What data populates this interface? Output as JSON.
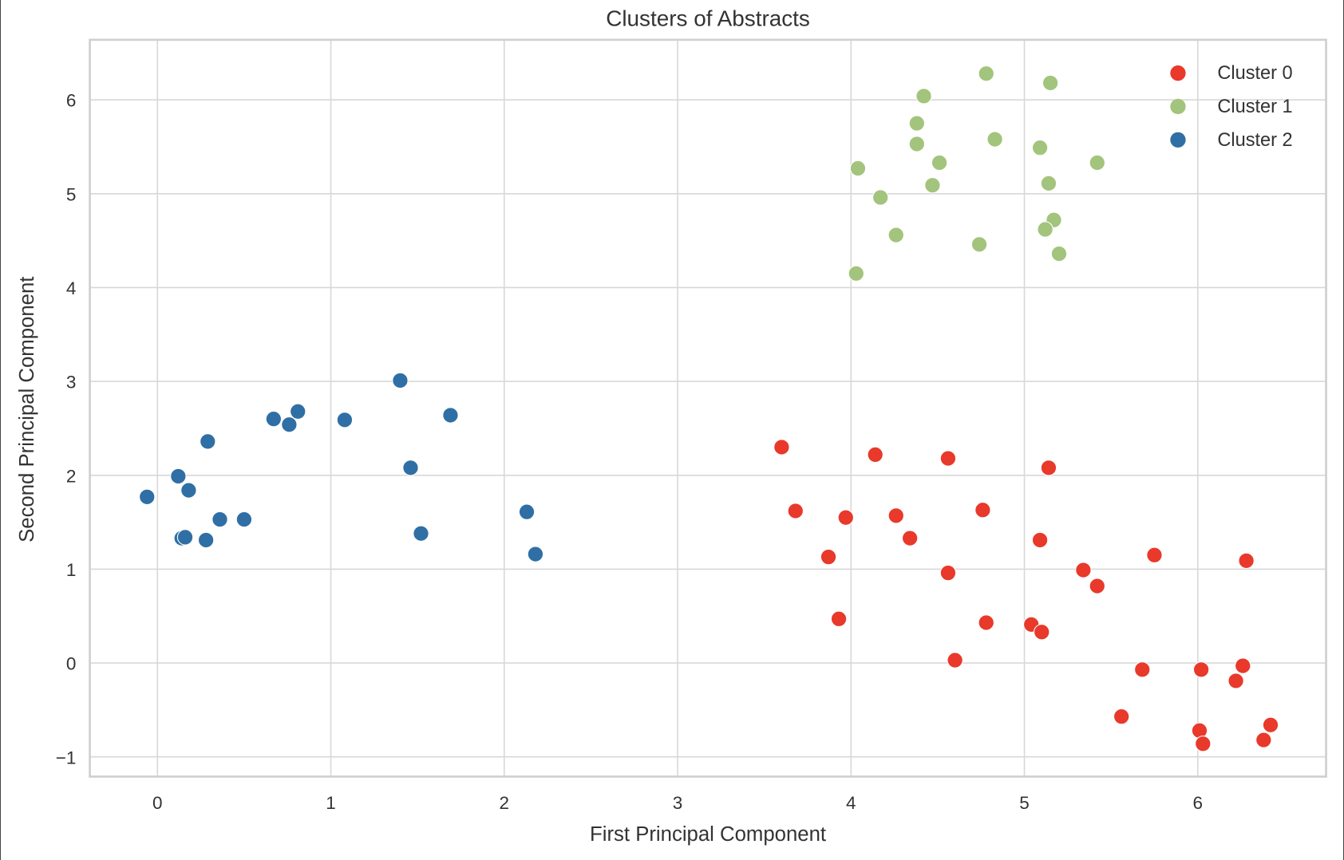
{
  "chart_data": {
    "type": "scatter",
    "title": "Clusters of Abstracts",
    "xlabel": "First Principal Component",
    "ylabel": "Second Principal Component",
    "xlim": [
      -0.39,
      6.74
    ],
    "ylim": [
      -1.21,
      6.64
    ],
    "xticks": [
      0,
      1,
      2,
      3,
      4,
      5,
      6
    ],
    "yticks": [
      -1,
      0,
      1,
      2,
      3,
      4,
      5,
      6
    ],
    "xtick_labels": [
      "0",
      "1",
      "2",
      "3",
      "4",
      "5",
      "6"
    ],
    "ytick_labels": [
      "−1",
      "0",
      "1",
      "2",
      "3",
      "4",
      "5",
      "6"
    ],
    "grid": true,
    "legend_position": "top-right",
    "series": [
      {
        "name": "Cluster 0",
        "color": "#e8392b",
        "points": [
          [
            3.6,
            2.3
          ],
          [
            4.14,
            2.22
          ],
          [
            4.56,
            2.18
          ],
          [
            5.14,
            2.08
          ],
          [
            3.68,
            1.62
          ],
          [
            3.97,
            1.55
          ],
          [
            4.26,
            1.57
          ],
          [
            4.76,
            1.63
          ],
          [
            4.34,
            1.33
          ],
          [
            5.09,
            1.31
          ],
          [
            3.87,
            1.13
          ],
          [
            4.56,
            0.96
          ],
          [
            5.34,
            0.99
          ],
          [
            5.75,
            1.15
          ],
          [
            6.28,
            1.09
          ],
          [
            5.42,
            0.82
          ],
          [
            3.93,
            0.47
          ],
          [
            4.78,
            0.43
          ],
          [
            5.04,
            0.41
          ],
          [
            5.1,
            0.33
          ],
          [
            4.6,
            0.03
          ],
          [
            5.68,
            -0.07
          ],
          [
            6.02,
            -0.07
          ],
          [
            6.26,
            -0.03
          ],
          [
            6.22,
            -0.19
          ],
          [
            5.56,
            -0.57
          ],
          [
            6.01,
            -0.72
          ],
          [
            6.03,
            -0.86
          ],
          [
            6.38,
            -0.82
          ],
          [
            6.42,
            -0.66
          ]
        ]
      },
      {
        "name": "Cluster 1",
        "color": "#a3c47c",
        "points": [
          [
            4.78,
            6.28
          ],
          [
            5.15,
            6.18
          ],
          [
            4.42,
            6.04
          ],
          [
            4.38,
            5.75
          ],
          [
            4.38,
            5.53
          ],
          [
            4.83,
            5.58
          ],
          [
            5.09,
            5.49
          ],
          [
            4.51,
            5.33
          ],
          [
            5.42,
            5.33
          ],
          [
            4.04,
            5.27
          ],
          [
            4.47,
            5.09
          ],
          [
            5.14,
            5.11
          ],
          [
            4.17,
            4.96
          ],
          [
            5.17,
            4.72
          ],
          [
            5.12,
            4.62
          ],
          [
            4.26,
            4.56
          ],
          [
            4.74,
            4.46
          ],
          [
            5.2,
            4.36
          ],
          [
            4.03,
            4.15
          ]
        ]
      },
      {
        "name": "Cluster 2",
        "color": "#2f6fa5",
        "points": [
          [
            -0.06,
            1.77
          ],
          [
            0.12,
            1.99
          ],
          [
            0.18,
            1.84
          ],
          [
            0.29,
            2.36
          ],
          [
            0.14,
            1.33
          ],
          [
            0.16,
            1.34
          ],
          [
            0.28,
            1.31
          ],
          [
            0.36,
            1.53
          ],
          [
            0.5,
            1.53
          ],
          [
            0.67,
            2.6
          ],
          [
            0.76,
            2.54
          ],
          [
            0.81,
            2.68
          ],
          [
            1.08,
            2.59
          ],
          [
            1.4,
            3.01
          ],
          [
            1.46,
            2.08
          ],
          [
            1.52,
            1.38
          ],
          [
            1.69,
            2.64
          ],
          [
            2.13,
            1.61
          ],
          [
            2.18,
            1.16
          ]
        ]
      }
    ]
  }
}
